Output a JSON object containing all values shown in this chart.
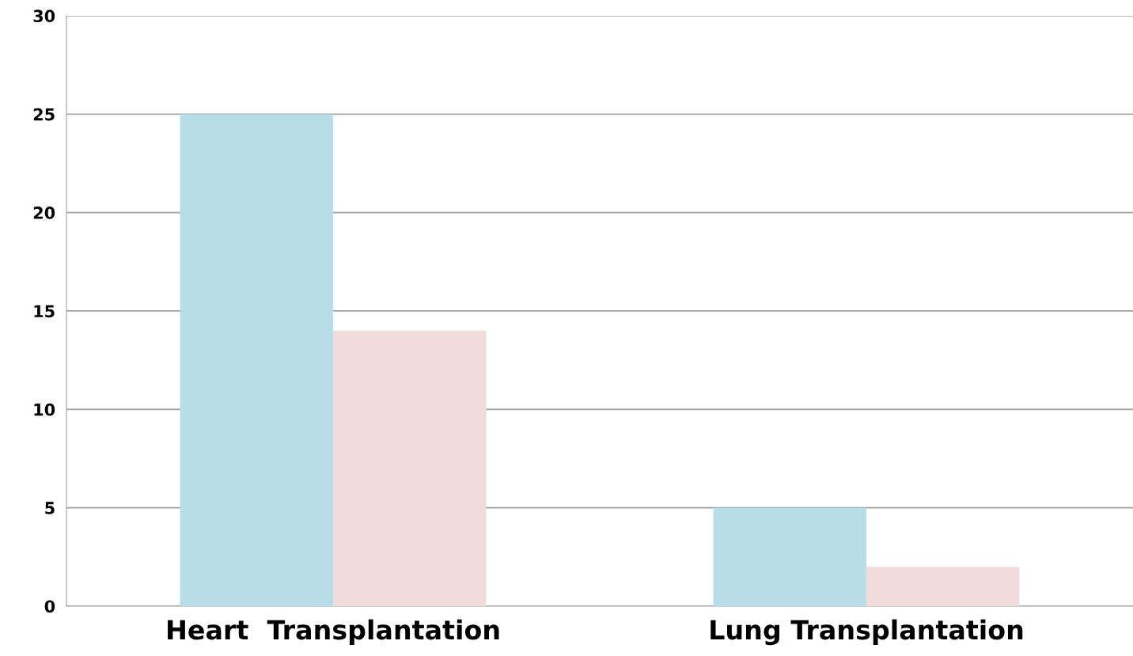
{
  "chart_data": {
    "type": "bar",
    "categories": [
      "Heart  Transplantation",
      "Lung Transplantation"
    ],
    "series": [
      {
        "color": "#b7dde8",
        "values": [
          25,
          5
        ]
      },
      {
        "color": "#f2dcdb",
        "values": [
          14,
          2
        ]
      }
    ],
    "ylim": [
      0,
      30
    ],
    "yticks": [
      0,
      5,
      10,
      15,
      20,
      25,
      30
    ],
    "grid": "y",
    "legend": false
  }
}
